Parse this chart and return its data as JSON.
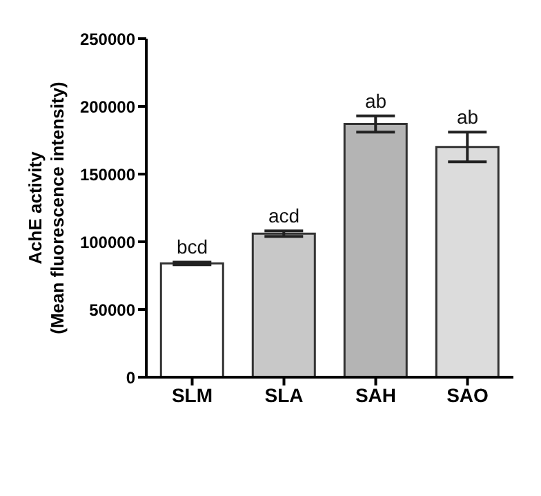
{
  "chart_data": {
    "type": "bar",
    "ylabel": "AchE activity\n(Mean fluorescence intensity)",
    "categories": [
      "SLM",
      "SLA",
      "SAH",
      "SAO"
    ],
    "values": [
      84000,
      106000,
      187000,
      170000
    ],
    "errors": [
      1000,
      2000,
      6000,
      11000
    ],
    "colors": [
      "#ffffff",
      "#c8c8c8",
      "#b4b4b4",
      "#dcdcdc"
    ],
    "ylim": [
      0,
      250000
    ],
    "yticks": [
      0,
      50000,
      100000,
      150000,
      200000,
      250000
    ],
    "grid": false,
    "legend": false,
    "annotations": [
      {
        "text": "bcd",
        "x": "SLM",
        "y": 85000
      },
      {
        "text": "acd",
        "x": "SLA",
        "y": 108000
      },
      {
        "text": "ab",
        "x": "SAH",
        "y": 193000
      },
      {
        "text": "ab",
        "x": "SAO",
        "y": 181000
      }
    ]
  }
}
